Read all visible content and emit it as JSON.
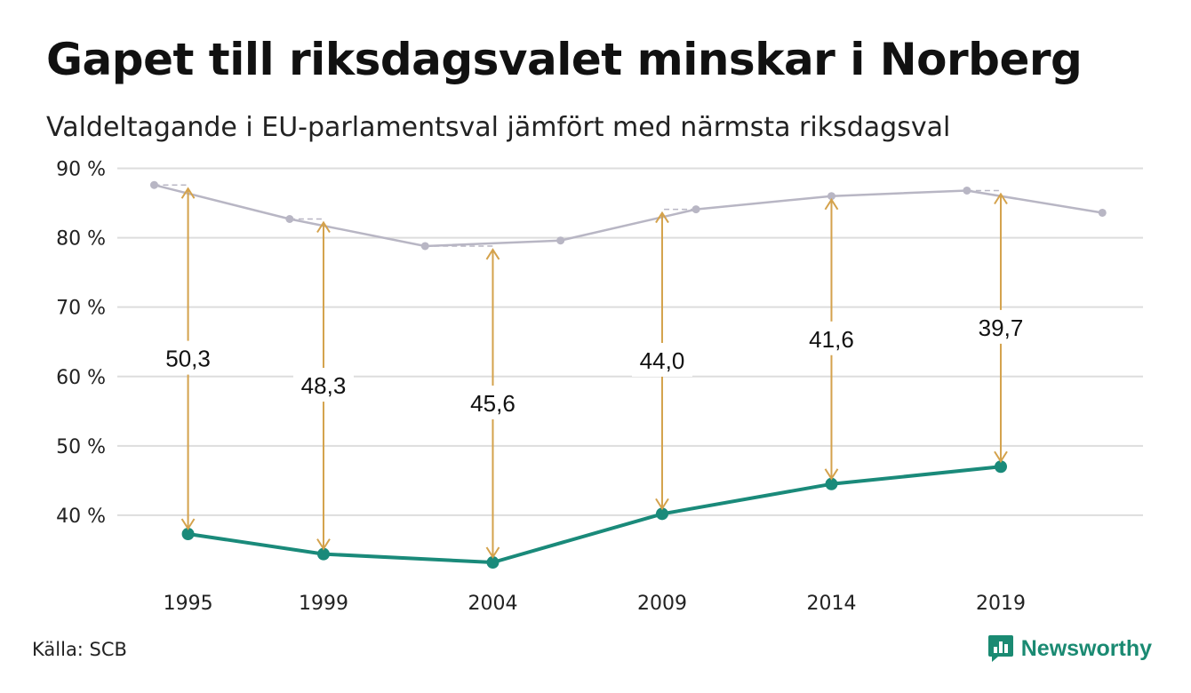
{
  "title": "Gapet till riksdagsvalet minskar i Norberg",
  "subtitle": "Valdeltagande i EU-parlamentsval jämfört med närmsta riksdagsval",
  "source": "Källa: SCB",
  "brand": "Newsworthy",
  "colors": {
    "eu": "#1a8a7a",
    "riksdag": "#b8b6c4",
    "gap": "#d4a24c",
    "grid": "#dddddd"
  },
  "chart_data": {
    "type": "line",
    "ylim": [
      30,
      90
    ],
    "yticks": [
      90,
      80,
      70,
      60,
      50,
      40
    ],
    "ytick_labels": [
      "90 %",
      "80 %",
      "70 %",
      "60 %",
      "50 %",
      "40 %"
    ],
    "xlim": [
      1993.2,
      2023.2
    ],
    "xticks": [
      1995,
      1999,
      2004,
      2009,
      2014,
      2019
    ],
    "xtick_labels": [
      "1995",
      "1999",
      "2004",
      "2009",
      "2014",
      "2019"
    ],
    "grid": true,
    "series": [
      {
        "key": "eu",
        "x": [
          1995,
          1999,
          2004,
          2009,
          2014,
          2019
        ],
        "values": [
          37.3,
          34.4,
          33.2,
          40.2,
          44.5,
          47.0
        ]
      },
      {
        "key": "riksdag",
        "x": [
          1994,
          1998,
          2002,
          2006,
          2010,
          2014,
          2018,
          2022
        ],
        "values": [
          87.6,
          82.7,
          78.8,
          79.6,
          84.1,
          86.0,
          86.8,
          83.6
        ]
      }
    ],
    "gaps": [
      {
        "x": 1995,
        "from": 37.3,
        "to": 87.6,
        "label": "50,3"
      },
      {
        "x": 1999,
        "from": 34.4,
        "to": 82.7,
        "label": "48,3"
      },
      {
        "x": 2004,
        "from": 33.2,
        "to": 78.8,
        "label": "45,6"
      },
      {
        "x": 2009,
        "from": 40.2,
        "to": 84.1,
        "label": "44,0"
      },
      {
        "x": 2014,
        "from": 44.5,
        "to": 86.0,
        "label": "41,6"
      },
      {
        "x": 2019,
        "from": 47.0,
        "to": 86.8,
        "label": "39,7"
      }
    ]
  }
}
